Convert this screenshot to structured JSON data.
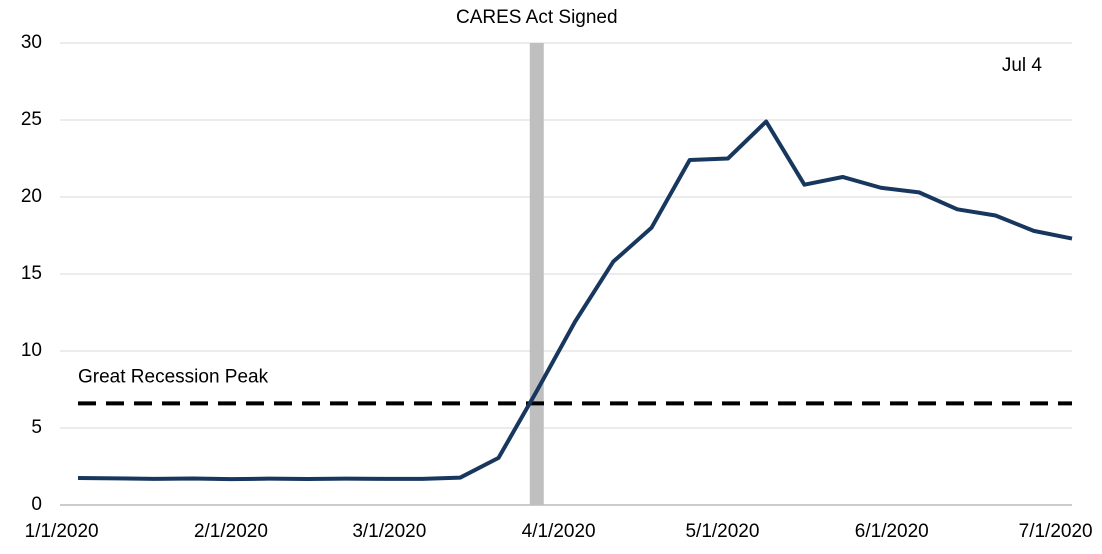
{
  "chart_data": {
    "type": "line",
    "x": [
      "2020-01-04",
      "2020-01-11",
      "2020-01-18",
      "2020-01-25",
      "2020-02-01",
      "2020-02-08",
      "2020-02-15",
      "2020-02-22",
      "2020-02-29",
      "2020-03-07",
      "2020-03-14",
      "2020-03-21",
      "2020-03-28",
      "2020-04-04",
      "2020-04-11",
      "2020-04-18",
      "2020-04-25",
      "2020-05-02",
      "2020-05-09",
      "2020-05-16",
      "2020-05-23",
      "2020-05-30",
      "2020-06-06",
      "2020-06-13",
      "2020-06-20",
      "2020-06-27",
      "2020-07-04"
    ],
    "series": [
      {
        "color": "#17375e",
        "values": [
          1.75,
          1.73,
          1.7,
          1.72,
          1.68,
          1.71,
          1.69,
          1.71,
          1.7,
          1.7,
          1.78,
          3.06,
          7.4,
          11.9,
          15.8,
          18.0,
          22.4,
          22.5,
          24.9,
          20.8,
          21.3,
          20.6,
          20.3,
          19.2,
          18.8,
          17.8,
          17.3
        ]
      }
    ],
    "xlim": [
      "2020-01-04",
      "2020-07-04"
    ],
    "xticks": [
      {
        "value": "2020-01-01",
        "label": "1/1/2020"
      },
      {
        "value": "2020-02-01",
        "label": "2/1/2020"
      },
      {
        "value": "2020-03-01",
        "label": "3/1/2020"
      },
      {
        "value": "2020-04-01",
        "label": "4/1/2020"
      },
      {
        "value": "2020-05-01",
        "label": "5/1/2020"
      },
      {
        "value": "2020-06-01",
        "label": "6/1/2020"
      },
      {
        "value": "2020-07-01",
        "label": "7/1/2020"
      }
    ],
    "ylim": [
      0,
      30
    ],
    "yticks": [
      0,
      5,
      10,
      15,
      20,
      25,
      30
    ],
    "grid": true,
    "vline": {
      "x": "2020-03-28",
      "label": "CARES Act Signed",
      "color": "#bfbfbf"
    },
    "hline": {
      "value": 6.6,
      "label": "Great Recession Peak",
      "color": "#000000"
    },
    "annotation": "Jul 4"
  }
}
